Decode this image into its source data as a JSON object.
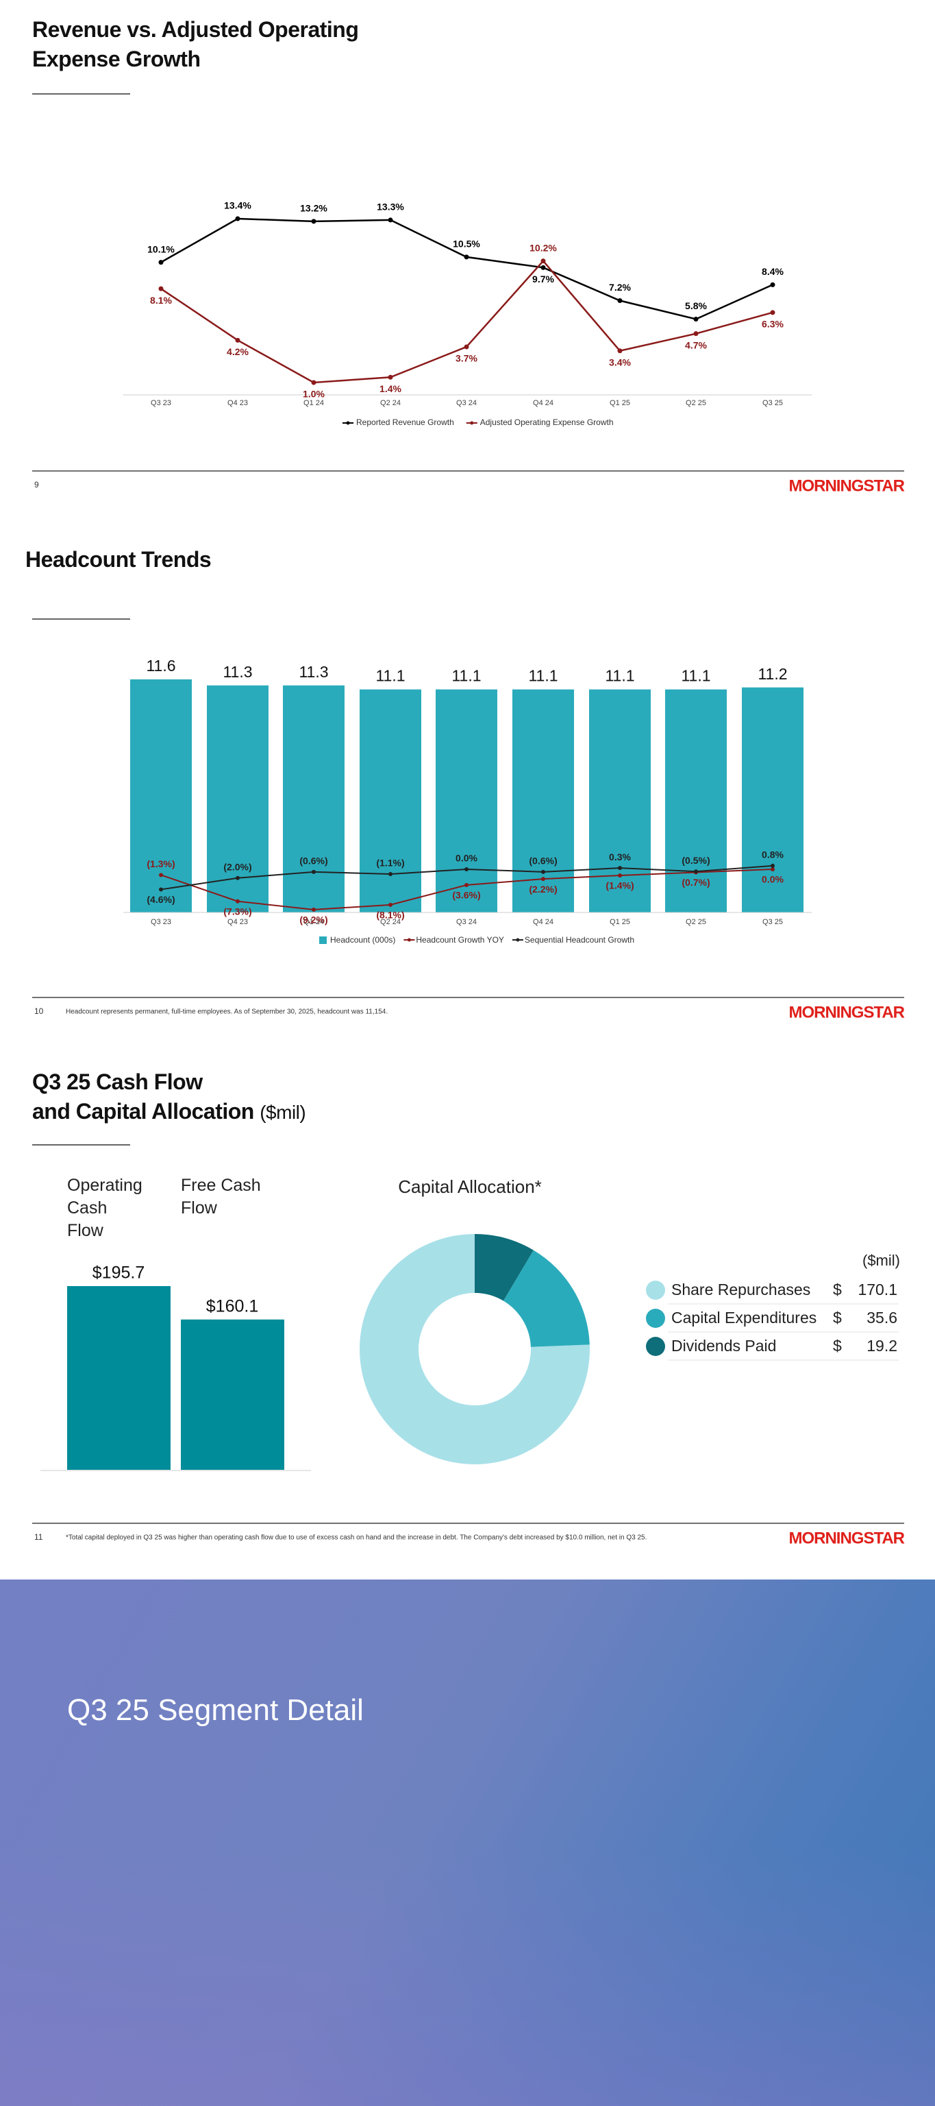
{
  "brand": "MORNINGSTAR",
  "slides": [
    {
      "number": "9"
    },
    {
      "number": "10",
      "note": "Headcount represents permanent, full-time employees. As of September 30, 2025, headcount was 11,154."
    },
    {
      "number": "11",
      "note": "*Total capital deployed in Q3 25 was higher than operating cash flow due to use of excess cash on hand and the increase in debt. The Company's debt increased by $10.0 million, net in Q3 25."
    }
  ],
  "section": {
    "title": "Q3 25 Segment Detail"
  },
  "chart_data": [
    {
      "type": "line",
      "title": [
        "Revenue vs. Adjusted Operating",
        "Expense Growth"
      ],
      "categories": [
        "Q3 23",
        "Q4 23",
        "Q1 24",
        "Q2 24",
        "Q3 24",
        "Q4 24",
        "Q1 25",
        "Q2 25",
        "Q3 25"
      ],
      "series": [
        {
          "name": "Reported Revenue Growth",
          "color": "#000000",
          "values": [
            10.1,
            13.4,
            13.2,
            13.3,
            10.5,
            9.7,
            7.2,
            5.8,
            8.4
          ],
          "value_labels": [
            "10.1%",
            "13.4%",
            "13.2%",
            "13.3%",
            "10.5%",
            "9.7%",
            "7.2%",
            "5.8%",
            "8.4%"
          ]
        },
        {
          "name": "Adjusted Operating Expense Growth",
          "color": "#8b1a1a",
          "values": [
            8.1,
            4.2,
            1.0,
            1.4,
            3.7,
            10.2,
            3.4,
            4.7,
            6.3
          ],
          "value_labels": [
            "8.1%",
            "4.2%",
            "1.0%",
            "1.4%",
            "3.7%",
            "10.2%",
            "3.4%",
            "4.7%",
            "6.3%"
          ]
        }
      ]
    },
    {
      "type": "bar-line",
      "title": [
        "Headcount Trends"
      ],
      "categories": [
        "Q3 23",
        "Q4 23",
        "Q1 24",
        "Q2 24",
        "Q3 24",
        "Q4 24",
        "Q1 25",
        "Q2 25",
        "Q3 25"
      ],
      "series": [
        {
          "name": "Headcount (000s)",
          "color": "#2aabbb",
          "kind": "bar",
          "values": [
            11.6,
            11.3,
            11.3,
            11.1,
            11.1,
            11.1,
            11.1,
            11.1,
            11.2
          ]
        },
        {
          "name": "Headcount Growth YOY",
          "color": "#8b1a1a",
          "kind": "line",
          "values": [
            -1.3,
            -7.3,
            -9.2,
            -8.1,
            -3.6,
            -2.2,
            -1.4,
            -0.7,
            0.0
          ],
          "value_labels": [
            "(1.3%)",
            "(7.3%)",
            "(9.2%)",
            "(8.1%)",
            "(3.6%)",
            "(2.2%)",
            "(1.4%)",
            "(0.7%)",
            "0.0%"
          ]
        },
        {
          "name": "Sequential Headcount Growth",
          "color": "#222222",
          "kind": "line",
          "values": [
            -4.6,
            -2.0,
            -0.6,
            -1.1,
            0.0,
            -0.6,
            0.3,
            -0.5,
            0.8
          ],
          "value_labels": [
            "(4.6%)",
            "(2.0%)",
            "(0.6%)",
            "(1.1%)",
            "0.0%",
            "(0.6%)",
            "0.3%",
            "(0.5%)",
            "0.8%"
          ]
        }
      ]
    },
    {
      "type": "bar",
      "title": [
        "Q3 25 Cash Flow",
        "and Capital Allocation"
      ],
      "subtitle": "($mil)",
      "categories": [
        "Operating Cash Flow",
        "Free Cash Flow"
      ],
      "values": [
        195.7,
        160.1
      ],
      "value_labels": [
        "$195.7",
        "$160.1"
      ],
      "color": "#008c99"
    },
    {
      "type": "pie",
      "title": "Capital Allocation*",
      "unit": "($mil)",
      "currency": "$",
      "categories": [
        "Share Repurchases",
        "Capital Expenditures",
        "Dividends Paid"
      ],
      "values": [
        170.1,
        35.6,
        19.2
      ],
      "colors": [
        "#a8e0e8",
        "#2aabbb",
        "#0e6e7a"
      ]
    }
  ]
}
